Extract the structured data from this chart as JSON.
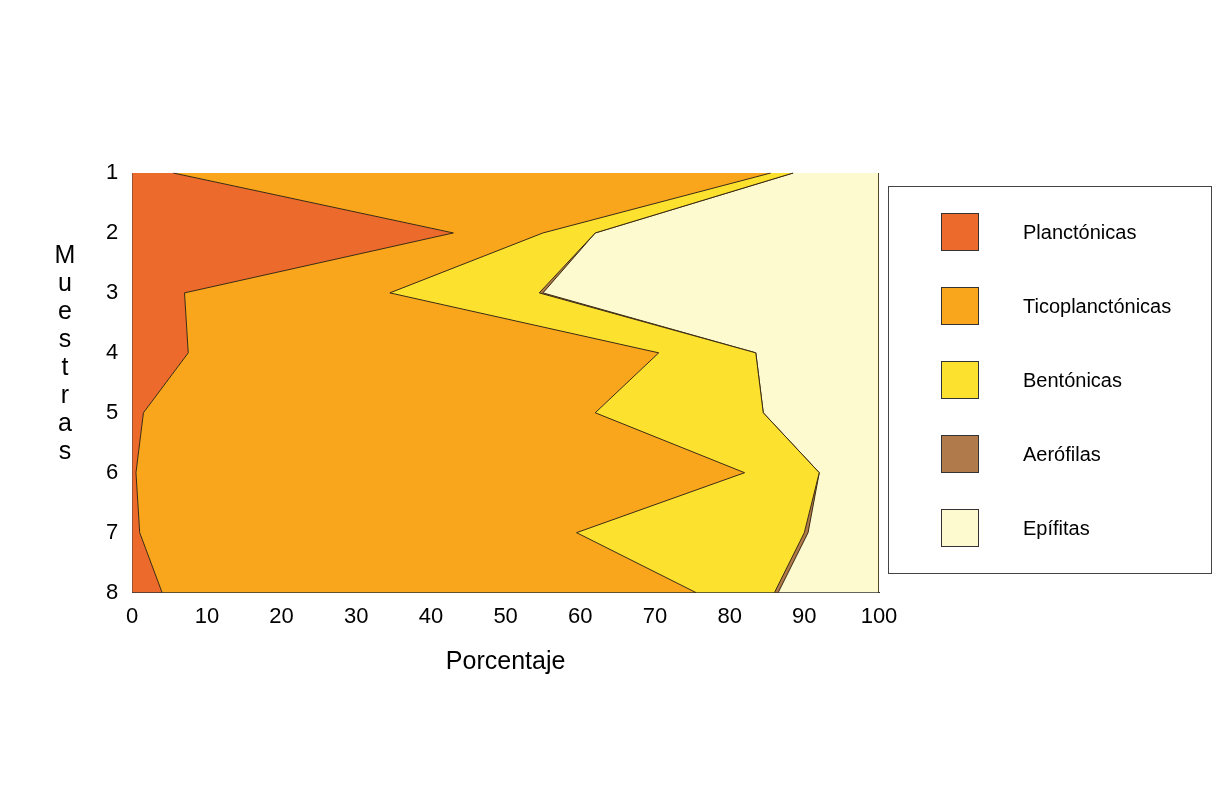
{
  "chart_data": {
    "type": "area",
    "stacked": true,
    "orientation": "horizontal",
    "categories": [
      "1",
      "2",
      "3",
      "4",
      "5",
      "6",
      "7",
      "8"
    ],
    "series": [
      {
        "name": "Planctónicas",
        "color": "#ec6a2c",
        "values": [
          5.5,
          43,
          7,
          7.5,
          1.5,
          0.5,
          1,
          4
        ]
      },
      {
        "name": "Ticoplanctónicas",
        "color": "#f9a61c",
        "values": [
          80,
          12,
          27.5,
          63,
          60.5,
          81.5,
          58.5,
          71.5
        ]
      },
      {
        "name": "Bentónicas",
        "color": "#fde12f",
        "values": [
          3,
          7,
          20,
          13,
          22.5,
          10,
          30.5,
          10.5
        ]
      },
      {
        "name": "Aerófilas",
        "color": "#b07a4a",
        "values": [
          0,
          0,
          0.5,
          0,
          0,
          0,
          0.5,
          0.5
        ]
      },
      {
        "name": "Epífitas",
        "color": "#fefad0",
        "values": [
          11.5,
          38,
          45,
          16.5,
          15.5,
          8,
          9.5,
          13.5
        ]
      }
    ],
    "xlabel": "Porcentaje",
    "ylabel": "Muestras",
    "xlim": [
      0,
      100
    ],
    "xticks": [
      0,
      10,
      20,
      30,
      40,
      50,
      60,
      70,
      80,
      90,
      100
    ],
    "grid": false,
    "legend": "right"
  }
}
